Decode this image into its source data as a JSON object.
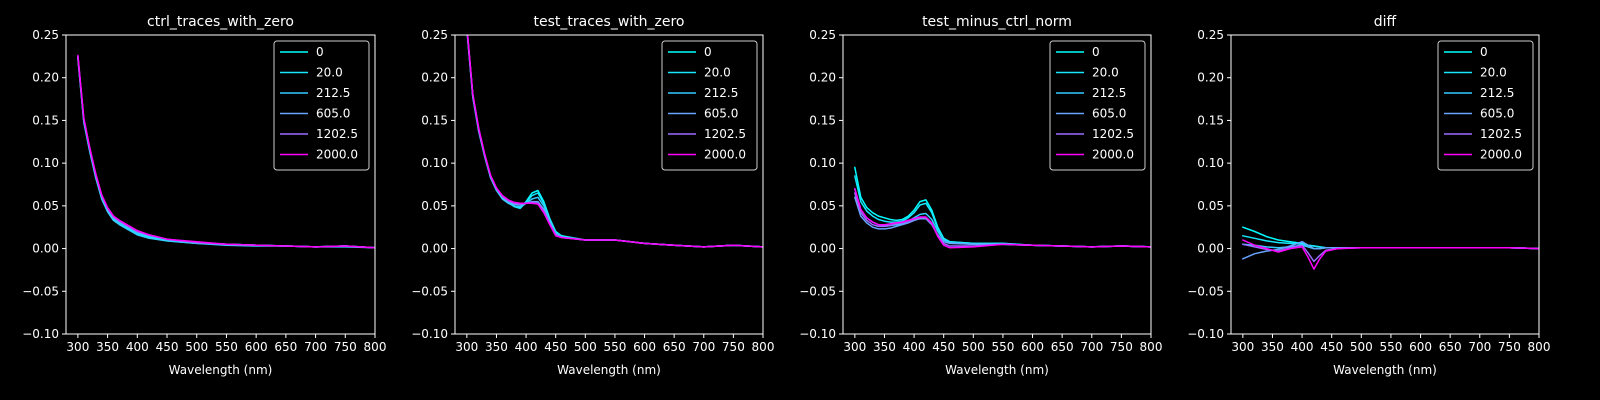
{
  "chart_data": [
    {
      "type": "line",
      "title": "ctrl_traces_with_zero",
      "xlabel": "Wavelength (nm)",
      "ylabel": "",
      "xlim": [
        280,
        800
      ],
      "ylim": [
        -0.1,
        0.25
      ],
      "xticks": [
        "300",
        "350",
        "400",
        "450",
        "500",
        "550",
        "600",
        "650",
        "700",
        "750",
        "800"
      ],
      "yticks": [
        "0.25",
        "0.20",
        "0.15",
        "0.10",
        "0.05",
        "0.00",
        "−0.05",
        "−0.10"
      ],
      "legend_position": "top-right",
      "x": [
        300,
        310,
        320,
        330,
        340,
        350,
        360,
        370,
        380,
        390,
        400,
        420,
        450,
        500,
        550,
        600,
        650,
        700,
        750,
        800
      ],
      "series": [
        {
          "name": "0",
          "color": "#00ffff",
          "values": [
            0.225,
            0.15,
            0.115,
            0.085,
            0.06,
            0.045,
            0.035,
            0.03,
            0.026,
            0.022,
            0.018,
            0.014,
            0.01,
            0.007,
            0.005,
            0.004,
            0.003,
            0.002,
            0.003,
            0.001
          ]
        },
        {
          "name": "20.0",
          "color": "#17e8ff",
          "values": [
            0.223,
            0.149,
            0.114,
            0.084,
            0.059,
            0.044,
            0.034,
            0.029,
            0.025,
            0.021,
            0.017,
            0.013,
            0.009,
            0.006,
            0.005,
            0.004,
            0.003,
            0.002,
            0.003,
            0.001
          ]
        },
        {
          "name": "212.5",
          "color": "#33ccff",
          "values": [
            0.222,
            0.148,
            0.113,
            0.083,
            0.058,
            0.043,
            0.033,
            0.028,
            0.024,
            0.02,
            0.016,
            0.012,
            0.009,
            0.006,
            0.004,
            0.003,
            0.003,
            0.002,
            0.002,
            0.001
          ]
        },
        {
          "name": "605.0",
          "color": "#66a3ff",
          "values": [
            0.224,
            0.151,
            0.116,
            0.086,
            0.061,
            0.046,
            0.036,
            0.031,
            0.027,
            0.023,
            0.019,
            0.015,
            0.011,
            0.007,
            0.005,
            0.004,
            0.003,
            0.002,
            0.003,
            0.001
          ]
        },
        {
          "name": "1202.5",
          "color": "#9a6bff",
          "values": [
            0.225,
            0.152,
            0.117,
            0.087,
            0.062,
            0.047,
            0.037,
            0.032,
            0.028,
            0.024,
            0.02,
            0.016,
            0.011,
            0.007,
            0.005,
            0.004,
            0.003,
            0.002,
            0.003,
            0.001
          ]
        },
        {
          "name": "2000.0",
          "color": "#ff00ff",
          "values": [
            0.226,
            0.153,
            0.118,
            0.088,
            0.063,
            0.048,
            0.038,
            0.033,
            0.029,
            0.025,
            0.021,
            0.016,
            0.011,
            0.008,
            0.005,
            0.004,
            0.003,
            0.002,
            0.003,
            0.001
          ]
        }
      ]
    },
    {
      "type": "line",
      "title": "test_traces_with_zero",
      "xlabel": "Wavelength (nm)",
      "ylabel": "",
      "xlim": [
        280,
        800
      ],
      "ylim": [
        -0.1,
        0.25
      ],
      "xticks": [
        "300",
        "350",
        "400",
        "450",
        "500",
        "550",
        "600",
        "650",
        "700",
        "750",
        "800"
      ],
      "yticks": [
        "0.25",
        "0.20",
        "0.15",
        "0.10",
        "0.05",
        "0.00",
        "−0.05",
        "−0.10"
      ],
      "legend_position": "top-right",
      "x": [
        300,
        310,
        320,
        330,
        340,
        350,
        360,
        370,
        380,
        390,
        400,
        410,
        420,
        430,
        440,
        450,
        460,
        500,
        550,
        600,
        650,
        700,
        750,
        800
      ],
      "series": [
        {
          "name": "0",
          "color": "#00ffff",
          "values": [
            0.26,
            0.18,
            0.14,
            0.11,
            0.085,
            0.07,
            0.06,
            0.055,
            0.05,
            0.048,
            0.055,
            0.065,
            0.068,
            0.055,
            0.035,
            0.02,
            0.015,
            0.01,
            0.01,
            0.006,
            0.004,
            0.002,
            0.004,
            0.002
          ]
        },
        {
          "name": "20.0",
          "color": "#17e8ff",
          "values": [
            0.258,
            0.178,
            0.138,
            0.109,
            0.084,
            0.069,
            0.059,
            0.054,
            0.049,
            0.047,
            0.054,
            0.062,
            0.065,
            0.053,
            0.034,
            0.019,
            0.014,
            0.01,
            0.01,
            0.006,
            0.004,
            0.002,
            0.004,
            0.002
          ]
        },
        {
          "name": "212.5",
          "color": "#33ccff",
          "values": [
            0.257,
            0.177,
            0.137,
            0.108,
            0.083,
            0.068,
            0.058,
            0.053,
            0.05,
            0.049,
            0.053,
            0.058,
            0.06,
            0.05,
            0.032,
            0.018,
            0.014,
            0.01,
            0.01,
            0.006,
            0.004,
            0.002,
            0.004,
            0.002
          ]
        },
        {
          "name": "605.0",
          "color": "#66a3ff",
          "values": [
            0.259,
            0.179,
            0.139,
            0.11,
            0.085,
            0.07,
            0.06,
            0.055,
            0.052,
            0.051,
            0.053,
            0.055,
            0.055,
            0.046,
            0.03,
            0.017,
            0.013,
            0.01,
            0.01,
            0.006,
            0.004,
            0.002,
            0.004,
            0.002
          ]
        },
        {
          "name": "1202.5",
          "color": "#9a6bff",
          "values": [
            0.26,
            0.18,
            0.14,
            0.11,
            0.085,
            0.07,
            0.061,
            0.056,
            0.053,
            0.052,
            0.053,
            0.054,
            0.053,
            0.044,
            0.029,
            0.016,
            0.013,
            0.01,
            0.01,
            0.006,
            0.004,
            0.002,
            0.004,
            0.002
          ]
        },
        {
          "name": "2000.0",
          "color": "#ff00ff",
          "values": [
            0.261,
            0.181,
            0.141,
            0.111,
            0.086,
            0.071,
            0.062,
            0.057,
            0.054,
            0.053,
            0.053,
            0.053,
            0.052,
            0.042,
            0.028,
            0.015,
            0.013,
            0.01,
            0.01,
            0.006,
            0.004,
            0.002,
            0.004,
            0.002
          ]
        }
      ]
    },
    {
      "type": "line",
      "title": "test_minus_ctrl_norm",
      "xlabel": "Wavelength (nm)",
      "ylabel": "",
      "xlim": [
        280,
        800
      ],
      "ylim": [
        -0.1,
        0.25
      ],
      "xticks": [
        "300",
        "350",
        "400",
        "450",
        "500",
        "550",
        "600",
        "650",
        "700",
        "750",
        "800"
      ],
      "yticks": [
        "0.25",
        "0.20",
        "0.15",
        "0.10",
        "0.05",
        "0.00",
        "−0.05",
        "−0.10"
      ],
      "legend_position": "top-right",
      "x": [
        300,
        310,
        320,
        330,
        340,
        350,
        360,
        370,
        380,
        390,
        400,
        410,
        420,
        430,
        440,
        450,
        460,
        500,
        550,
        600,
        650,
        700,
        750,
        800
      ],
      "series": [
        {
          "name": "0",
          "color": "#00ffff",
          "values": [
            0.095,
            0.06,
            0.048,
            0.042,
            0.038,
            0.036,
            0.034,
            0.033,
            0.034,
            0.038,
            0.045,
            0.055,
            0.057,
            0.045,
            0.025,
            0.012,
            0.008,
            0.006,
            0.006,
            0.004,
            0.003,
            0.002,
            0.003,
            0.002
          ]
        },
        {
          "name": "20.0",
          "color": "#17e8ff",
          "values": [
            0.085,
            0.055,
            0.044,
            0.038,
            0.034,
            0.032,
            0.031,
            0.031,
            0.032,
            0.036,
            0.042,
            0.051,
            0.053,
            0.042,
            0.023,
            0.011,
            0.008,
            0.006,
            0.006,
            0.004,
            0.003,
            0.002,
            0.003,
            0.002
          ]
        },
        {
          "name": "212.5",
          "color": "#33ccff",
          "values": [
            0.07,
            0.045,
            0.036,
            0.031,
            0.028,
            0.027,
            0.027,
            0.028,
            0.029,
            0.032,
            0.036,
            0.04,
            0.041,
            0.034,
            0.02,
            0.01,
            0.007,
            0.005,
            0.005,
            0.004,
            0.003,
            0.002,
            0.003,
            0.002
          ]
        },
        {
          "name": "605.0",
          "color": "#66a3ff",
          "values": [
            0.06,
            0.038,
            0.03,
            0.025,
            0.023,
            0.023,
            0.024,
            0.026,
            0.028,
            0.03,
            0.033,
            0.035,
            0.035,
            0.028,
            0.016,
            0.008,
            0.006,
            0.005,
            0.005,
            0.004,
            0.003,
            0.002,
            0.003,
            0.002
          ]
        },
        {
          "name": "1202.5",
          "color": "#9a6bff",
          "values": [
            0.065,
            0.042,
            0.033,
            0.028,
            0.026,
            0.026,
            0.027,
            0.029,
            0.03,
            0.032,
            0.034,
            0.036,
            0.036,
            0.029,
            0.015,
            0.006,
            0.003,
            0.003,
            0.005,
            0.004,
            0.003,
            0.002,
            0.003,
            0.002
          ]
        },
        {
          "name": "2000.0",
          "color": "#ff00ff",
          "values": [
            0.07,
            0.046,
            0.036,
            0.031,
            0.028,
            0.028,
            0.029,
            0.03,
            0.031,
            0.033,
            0.035,
            0.037,
            0.037,
            0.03,
            0.014,
            0.004,
            0.001,
            0.002,
            0.005,
            0.004,
            0.003,
            0.002,
            0.003,
            0.002
          ]
        }
      ]
    },
    {
      "type": "line",
      "title": "diff",
      "xlabel": "Wavelength (nm)",
      "ylabel": "",
      "xlim": [
        280,
        800
      ],
      "ylim": [
        -0.1,
        0.25
      ],
      "xticks": [
        "300",
        "350",
        "400",
        "450",
        "500",
        "550",
        "600",
        "650",
        "700",
        "750",
        "800"
      ],
      "yticks": [
        "0.25",
        "0.20",
        "0.15",
        "0.10",
        "0.05",
        "0.00",
        "−0.05",
        "−0.10"
      ],
      "legend_position": "top-right",
      "x": [
        300,
        320,
        340,
        360,
        380,
        400,
        410,
        420,
        430,
        440,
        460,
        500,
        550,
        600,
        650,
        700,
        750,
        800
      ],
      "series": [
        {
          "name": "0",
          "color": "#00ffff",
          "values": [
            0.025,
            0.02,
            0.014,
            0.01,
            0.008,
            0.006,
            0.004,
            0.003,
            0.002,
            0.001,
            0.001,
            0.001,
            0.001,
            0.001,
            0.001,
            0.001,
            0.001,
            0.0
          ]
        },
        {
          "name": "20.0",
          "color": "#17e8ff",
          "values": [
            0.015,
            0.012,
            0.009,
            0.007,
            0.006,
            0.005,
            0.004,
            0.003,
            0.002,
            0.001,
            0.001,
            0.001,
            0.001,
            0.001,
            0.001,
            0.001,
            0.001,
            0.0
          ]
        },
        {
          "name": "212.5",
          "color": "#33ccff",
          "values": [
            0.005,
            0.004,
            0.002,
            0.001,
            0.002,
            0.004,
            0.002,
            0.0,
            0.0,
            0.001,
            0.001,
            0.001,
            0.001,
            0.001,
            0.001,
            0.001,
            0.001,
            0.0
          ]
        },
        {
          "name": "605.0",
          "color": "#66a3ff",
          "values": [
            -0.012,
            -0.006,
            -0.003,
            -0.001,
            0.003,
            0.008,
            0.004,
            0.0,
            0.0,
            0.001,
            0.001,
            0.001,
            0.001,
            0.001,
            0.001,
            0.001,
            0.001,
            0.0
          ]
        },
        {
          "name": "1202.5",
          "color": "#9a6bff",
          "values": [
            0.005,
            0.002,
            -0.001,
            -0.003,
            0.001,
            0.004,
            -0.005,
            -0.015,
            -0.008,
            -0.002,
            0.0,
            0.001,
            0.001,
            0.001,
            0.001,
            0.001,
            0.001,
            0.0
          ]
        },
        {
          "name": "2000.0",
          "color": "#ff00ff",
          "values": [
            0.01,
            0.004,
            0.0,
            -0.004,
            0.0,
            0.002,
            -0.01,
            -0.024,
            -0.012,
            -0.003,
            0.0,
            0.001,
            0.001,
            0.001,
            0.001,
            0.001,
            0.001,
            0.0
          ]
        }
      ]
    }
  ]
}
